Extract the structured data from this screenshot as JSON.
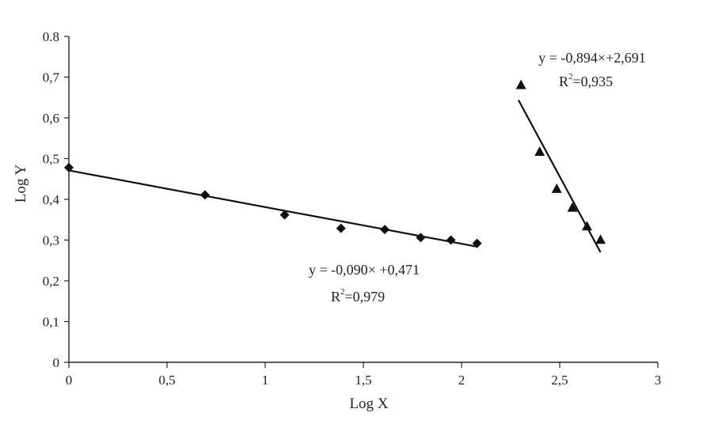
{
  "chart_data": {
    "type": "scatter",
    "title": "",
    "xlabel": "Log X",
    "ylabel": "Log Y",
    "xlim": [
      0,
      3
    ],
    "ylim": [
      0,
      0.8
    ],
    "x_ticks": [
      0,
      0.5,
      1,
      1.5,
      2,
      2.5,
      3
    ],
    "x_tick_labels": [
      "0",
      "0,5",
      "1",
      "1,5",
      "2",
      "2,5",
      "3"
    ],
    "y_ticks": [
      0,
      0.1,
      0.2,
      0.3,
      0.4,
      0.5,
      0.6,
      0.7,
      0.8
    ],
    "y_tick_labels": [
      "0",
      "0,1",
      "0,2",
      "0,3",
      "0,4",
      "0,5",
      "0,6",
      "0,7",
      "0.8"
    ],
    "grid": false,
    "legend": "none",
    "series": [
      {
        "marker": "diamond",
        "points": [
          {
            "x": 0.0,
            "y": 0.478
          },
          {
            "x": 0.693,
            "y": 0.411
          },
          {
            "x": 1.099,
            "y": 0.362
          },
          {
            "x": 1.386,
            "y": 0.329
          },
          {
            "x": 1.609,
            "y": 0.326
          },
          {
            "x": 1.792,
            "y": 0.306
          },
          {
            "x": 1.946,
            "y": 0.3
          },
          {
            "x": 2.079,
            "y": 0.292
          }
        ],
        "trendline": {
          "slope": -0.09,
          "intercept": 0.471,
          "x_range": [
            0,
            2.079
          ]
        },
        "equation": {
          "line1": "y = -0,090× +0,471",
          "r2_prefix": "R",
          "r2_sup": "2",
          "r2_value": "=0,979"
        }
      },
      {
        "marker": "triangle",
        "points": [
          {
            "x": 2.303,
            "y": 0.68
          },
          {
            "x": 2.398,
            "y": 0.516
          },
          {
            "x": 2.485,
            "y": 0.425
          },
          {
            "x": 2.565,
            "y": 0.379
          },
          {
            "x": 2.639,
            "y": 0.333
          },
          {
            "x": 2.708,
            "y": 0.3
          }
        ],
        "trendline": {
          "slope": -0.894,
          "intercept": 2.691,
          "x_range": [
            2.29,
            2.708
          ]
        },
        "equation": {
          "line1": "y = -0,894×+2,691",
          "r2_prefix": "R",
          "r2_sup": "2",
          "r2_value": "=0,935"
        }
      }
    ]
  }
}
